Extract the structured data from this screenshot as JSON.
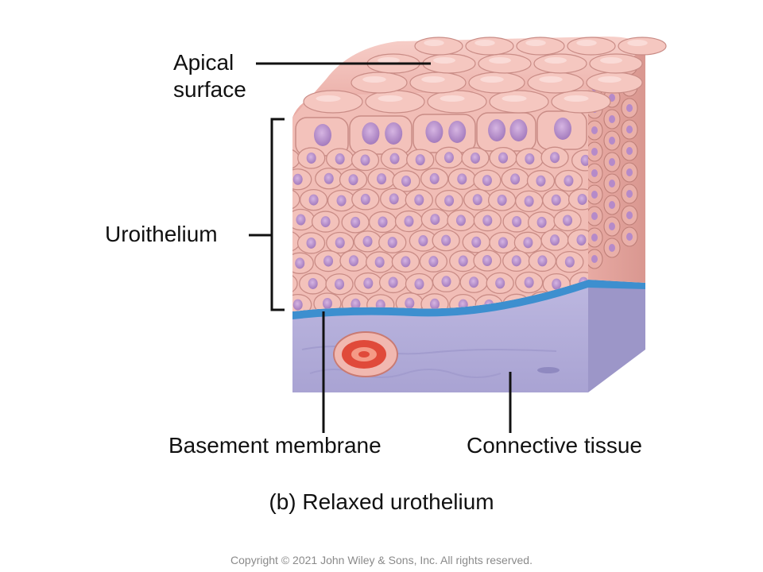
{
  "labels": {
    "apical_line1": "Apical",
    "apical_line2": "surface",
    "urothelium": "Uroithelium",
    "basement_membrane": "Basement membrane",
    "connective_tissue": "Connective tissue"
  },
  "caption": "(b) Relaxed urothelium",
  "copyright": "Copyright © 2021 John Wiley & Sons, Inc. All rights reserved.",
  "colors": {
    "cell_fill": "#f3c2bb",
    "cell_stroke": "#c98c86",
    "nucleus": "#b58ac9",
    "basement": "#3d8fcf",
    "connective": "#b6b2dc",
    "vessel": "#e04a3a"
  }
}
